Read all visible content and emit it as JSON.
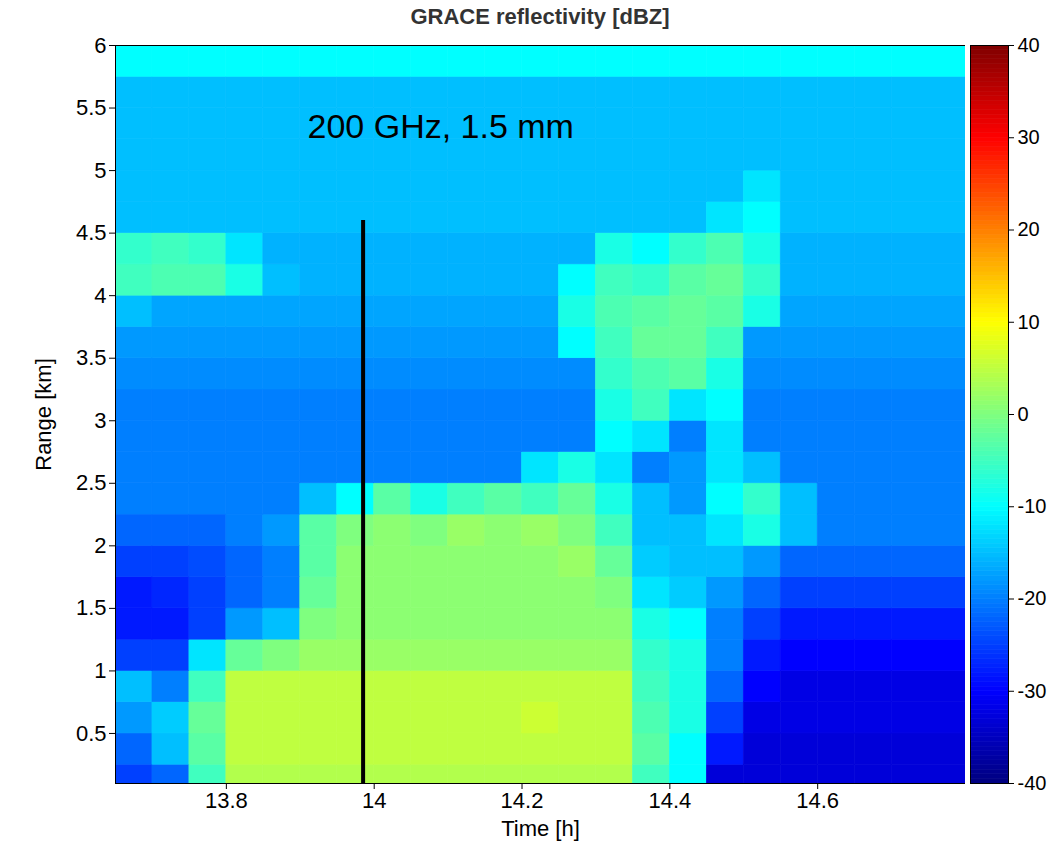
{
  "chart_data": {
    "type": "heatmap",
    "title": "GRACE reflectivity [dBZ]",
    "x_label": "Time [h]",
    "y_label": "Range [km]",
    "xlim": [
      13.65,
      14.8
    ],
    "ylim": [
      0.1,
      6
    ],
    "xticks": [
      13.8,
      14,
      14.2,
      14.4,
      14.6
    ],
    "yticks": [
      0.5,
      1,
      1.5,
      2,
      2.5,
      3,
      3.5,
      4,
      4.5,
      5,
      5.5,
      6
    ],
    "annotation": {
      "text": "200 GHz, 1.5 mm",
      "x": 14.09,
      "y": 5.35
    },
    "annotation_line": {
      "x": 13.985,
      "y": [
        0.1,
        4.6
      ]
    },
    "x_bins": [
      13.65,
      13.7,
      13.75,
      13.8,
      13.85,
      13.9,
      13.95,
      14,
      14.05,
      14.1,
      14.15,
      14.2,
      14.25,
      14.3,
      14.35,
      14.4,
      14.45,
      14.5,
      14.55,
      14.6,
      14.65,
      14.7,
      14.8
    ],
    "y_bins": [
      0,
      0.25,
      0.5,
      0.75,
      1,
      1.25,
      1.5,
      1.75,
      2,
      2.25,
      2.5,
      2.75,
      3,
      3.25,
      3.5,
      3.75,
      4,
      4.25,
      4.5,
      4.75,
      5,
      5.25,
      5.5,
      5.75,
      6
    ],
    "cells": [
      [
        -25,
        -22,
        -5,
        4,
        4,
        4,
        4,
        4,
        4,
        4,
        4,
        4,
        4,
        4,
        -5,
        -10,
        -33,
        -33,
        -33,
        -33,
        -33,
        -33
      ],
      [
        -22,
        -15,
        -3,
        5,
        5,
        5,
        5,
        5,
        5,
        5,
        5,
        5,
        5,
        5,
        -3,
        -10,
        -28,
        -33,
        -33,
        -33,
        -33,
        -33
      ],
      [
        -18,
        -14,
        -2,
        5,
        5,
        5,
        5,
        5,
        5,
        5,
        5,
        6,
        5,
        5,
        -4,
        -8,
        -25,
        -32,
        -32,
        -32,
        -32,
        -32
      ],
      [
        -15,
        -20,
        -5,
        5,
        5,
        5,
        5,
        5,
        5,
        5,
        5,
        5,
        5,
        5,
        -5,
        -8,
        -22,
        -30,
        -32,
        -32,
        -32,
        -32
      ],
      [
        -25,
        -25,
        -12,
        -2,
        0,
        2,
        2,
        2,
        2,
        2,
        2,
        2,
        2,
        2,
        -6,
        -8,
        -20,
        -28,
        -30,
        -30,
        -30,
        -30
      ],
      [
        -28,
        -28,
        -25,
        -18,
        -15,
        0,
        1,
        1,
        1,
        1,
        1,
        1,
        1,
        1,
        -8,
        -10,
        -20,
        -25,
        -28,
        -28,
        -28,
        -28
      ],
      [
        -28,
        -27,
        -25,
        -22,
        -20,
        -2,
        1,
        1,
        1,
        1,
        1,
        1,
        1,
        0,
        -12,
        -14,
        -18,
        -22,
        -25,
        -25,
        -25,
        -25
      ],
      [
        -25,
        -25,
        -24,
        -22,
        -20,
        -3,
        1,
        1,
        1,
        1,
        1,
        1,
        2,
        -2,
        -14,
        -15,
        -15,
        -18,
        -22,
        -22,
        -22,
        -22
      ],
      [
        -22,
        -22,
        -22,
        -20,
        -18,
        -3,
        0,
        1,
        0,
        2,
        1,
        2,
        0,
        -5,
        -15,
        -15,
        -12,
        -8,
        -15,
        -20,
        -20,
        -20
      ],
      [
        -20,
        -20,
        -20,
        -20,
        -20,
        -15,
        -10,
        -3,
        -8,
        -5,
        -3,
        -5,
        -2,
        -8,
        -15,
        -18,
        -10,
        -6,
        -15,
        -20,
        -20,
        -20
      ],
      [
        -20,
        -20,
        -20,
        -20,
        -20,
        -20,
        -20,
        -20,
        -20,
        -20,
        -20,
        -12,
        -8,
        -12,
        -20,
        -18,
        -12,
        -15,
        -20,
        -20,
        -20,
        -20
      ],
      [
        -20,
        -20,
        -20,
        -20,
        -20,
        -20,
        -20,
        -20,
        -20,
        -20,
        -20,
        -20,
        -20,
        -10,
        -12,
        -20,
        -12,
        -20,
        -20,
        -20,
        -20,
        -20
      ],
      [
        -20,
        -20,
        -20,
        -20,
        -20,
        -20,
        -20,
        -20,
        -20,
        -20,
        -20,
        -20,
        -20,
        -8,
        -5,
        -12,
        -10,
        -20,
        -20,
        -20,
        -20,
        -20
      ],
      [
        -19,
        -19,
        -19,
        -19,
        -19,
        -19,
        -19,
        -19,
        -19,
        -19,
        -19,
        -19,
        -19,
        -6,
        -4,
        -3,
        -8,
        -19,
        -19,
        -19,
        -19,
        -19
      ],
      [
        -18,
        -18,
        -18,
        -18,
        -18,
        -18,
        -18,
        -18,
        -18,
        -18,
        -18,
        -18,
        -10,
        -5,
        -2,
        -2,
        -5,
        -18,
        -18,
        -18,
        -18,
        -18
      ],
      [
        -15,
        -17,
        -17,
        -17,
        -17,
        -17,
        -17,
        -17,
        -17,
        -17,
        -17,
        -17,
        -8,
        -4,
        -3,
        -2,
        -3,
        -8,
        -17,
        -17,
        -17,
        -17
      ],
      [
        -5,
        -4,
        -4,
        -8,
        -15,
        -16,
        -16,
        -16,
        -16,
        -16,
        -16,
        -16,
        -10,
        -5,
        -6,
        -3,
        -2,
        -6,
        -16,
        -16,
        -16,
        -16
      ],
      [
        -6,
        -5,
        -6,
        -12,
        -16,
        -16,
        -16,
        -16,
        -16,
        -16,
        -16,
        -16,
        -16,
        -8,
        -10,
        -6,
        -4,
        -8,
        -16,
        -16,
        -16,
        -16
      ],
      [
        -15,
        -15,
        -15,
        -15,
        -15,
        -15,
        -15,
        -15,
        -15,
        -15,
        -15,
        -15,
        -15,
        -15,
        -15,
        -15,
        -12,
        -10,
        -15,
        -15,
        -15,
        -15
      ],
      [
        -15,
        -15,
        -15,
        -15,
        -15,
        -15,
        -15,
        -15,
        -15,
        -15,
        -15,
        -15,
        -15,
        -15,
        -15,
        -15,
        -15,
        -12,
        -15,
        -15,
        -15,
        -15
      ],
      [
        -15,
        -15,
        -15,
        -15,
        -15,
        -15,
        -15,
        -15,
        -15,
        -15,
        -15,
        -15,
        -15,
        -15,
        -15,
        -15,
        -15,
        -15,
        -15,
        -15,
        -15,
        -15
      ],
      [
        -15,
        -15,
        -15,
        -15,
        -15,
        -15,
        -15,
        -15,
        -15,
        -15,
        -15,
        -15,
        -15,
        -15,
        -15,
        -15,
        -15,
        -15,
        -15,
        -15,
        -15,
        -15
      ],
      [
        -15,
        -15,
        -15,
        -15,
        -15,
        -15,
        -15,
        -15,
        -15,
        -15,
        -15,
        -15,
        -15,
        -15,
        -15,
        -15,
        -15,
        -15,
        -15,
        -15,
        -15,
        -15
      ],
      [
        -10,
        -10,
        -10,
        -10,
        -10,
        -10,
        -10,
        -10,
        -10,
        -10,
        -10,
        -10,
        -10,
        -10,
        -10,
        -10,
        -10,
        -10,
        -10,
        -10,
        -10,
        -10
      ]
    ],
    "colorbar": {
      "range": [
        -40,
        40
      ],
      "ticks": [
        -40,
        -30,
        -20,
        -10,
        0,
        10,
        20,
        30,
        40
      ]
    }
  }
}
